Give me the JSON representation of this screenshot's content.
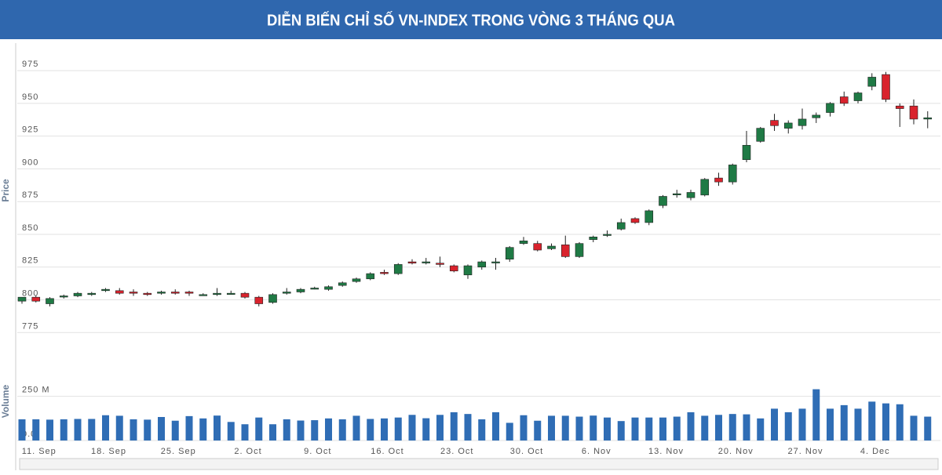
{
  "chart_data": [
    {
      "type": "candlestick",
      "title": "DIỄN BIẾN CHỈ SỐ VN-INDEX TRONG VÒNG 3 THÁNG QUA",
      "y_label": "Price",
      "up_color": "#1f7a45",
      "down_color": "#d9232d",
      "ylim": [
        765,
        996
      ],
      "yticks": [
        775,
        800,
        825,
        850,
        875,
        900,
        925,
        950,
        975
      ],
      "grid": true,
      "open": [
        799,
        802,
        797,
        803,
        803,
        804,
        807,
        807,
        806,
        805,
        805,
        806,
        806,
        804,
        804,
        805,
        805,
        802,
        798,
        805,
        806,
        809,
        808,
        811,
        814,
        816,
        821,
        820,
        829,
        829,
        828,
        826,
        819,
        825,
        829,
        831,
        843,
        843,
        839,
        842,
        833,
        846,
        850,
        854,
        862,
        859,
        872,
        881,
        878,
        880,
        893,
        890,
        907,
        921,
        937,
        931,
        933,
        939,
        943,
        955,
        952,
        963,
        972,
        948,
        948,
        938
      ],
      "high": [
        802,
        803,
        802,
        804,
        806,
        806,
        809,
        809,
        808,
        806,
        807,
        808,
        807,
        805,
        809,
        807,
        806,
        803,
        805,
        809,
        809,
        810,
        811,
        814,
        817,
        821,
        823,
        828,
        831,
        832,
        833,
        827,
        827,
        830,
        832,
        841,
        848,
        845,
        843,
        849,
        844,
        849,
        853,
        862,
        863,
        869,
        880,
        884,
        884,
        893,
        897,
        904,
        929,
        932,
        942,
        937,
        946,
        943,
        951,
        959,
        959,
        973,
        974,
        950,
        953,
        944
      ],
      "low": [
        797,
        798,
        795,
        801,
        802,
        803,
        806,
        804,
        803,
        803,
        804,
        804,
        803,
        803,
        803,
        804,
        801,
        795,
        797,
        804,
        805,
        808,
        807,
        810,
        813,
        815,
        819,
        819,
        827,
        827,
        825,
        821,
        816,
        823,
        823,
        829,
        842,
        837,
        838,
        832,
        832,
        844,
        848,
        853,
        858,
        857,
        870,
        878,
        876,
        879,
        887,
        888,
        905,
        920,
        929,
        927,
        930,
        935,
        940,
        948,
        950,
        960,
        951,
        932,
        934,
        931
      ],
      "close": [
        802,
        799,
        801,
        803,
        805,
        805,
        808,
        805,
        805,
        804,
        806,
        805,
        805,
        804,
        805,
        805,
        802,
        797,
        804,
        806,
        808,
        809,
        810,
        813,
        816,
        820,
        820,
        827,
        828,
        829,
        827,
        822,
        826,
        829,
        829,
        840,
        845,
        838,
        841,
        833,
        843,
        848,
        850,
        859,
        859,
        868,
        879,
        881,
        882,
        892,
        890,
        903,
        918,
        931,
        933,
        935,
        938,
        941,
        950,
        950,
        958,
        970,
        953,
        946,
        938,
        939
      ]
    },
    {
      "type": "bar",
      "y_label": "Volume",
      "color": "#2f6db5",
      "ylim": [
        0,
        430
      ],
      "yticks": [
        {
          "value": 0,
          "label": "0.0"
        },
        {
          "value": 250,
          "label": "250 M"
        }
      ],
      "categories": [
        null,
        "11. Sep",
        null,
        null,
        null,
        null,
        "18. Sep",
        null,
        null,
        null,
        null,
        "25. Sep",
        null,
        null,
        null,
        null,
        "2. Oct",
        null,
        null,
        null,
        null,
        "9. Oct",
        null,
        null,
        null,
        null,
        "16. Oct",
        null,
        null,
        null,
        null,
        "23. Oct",
        null,
        null,
        null,
        null,
        "30. Oct",
        null,
        null,
        null,
        null,
        "6. Nov",
        null,
        null,
        null,
        null,
        "13. Nov",
        null,
        null,
        null,
        null,
        "20. Nov",
        null,
        null,
        null,
        null,
        "27. Nov",
        null,
        null,
        null,
        null,
        "4. Dec",
        null,
        null,
        null,
        null
      ],
      "values": [
        120,
        120,
        118,
        120,
        122,
        122,
        143,
        140,
        120,
        118,
        133,
        112,
        138,
        125,
        141,
        105,
        92,
        130,
        92,
        120,
        113,
        115,
        125,
        120,
        140,
        122,
        125,
        130,
        145,
        126,
        145,
        160,
        150,
        120,
        160,
        100,
        143,
        112,
        140,
        140,
        135,
        141,
        130,
        110,
        130,
        130,
        130,
        135,
        160,
        140,
        145,
        150,
        148,
        125,
        180,
        160,
        180,
        290,
        180,
        200,
        180,
        220,
        210,
        205,
        140,
        135
      ]
    }
  ]
}
